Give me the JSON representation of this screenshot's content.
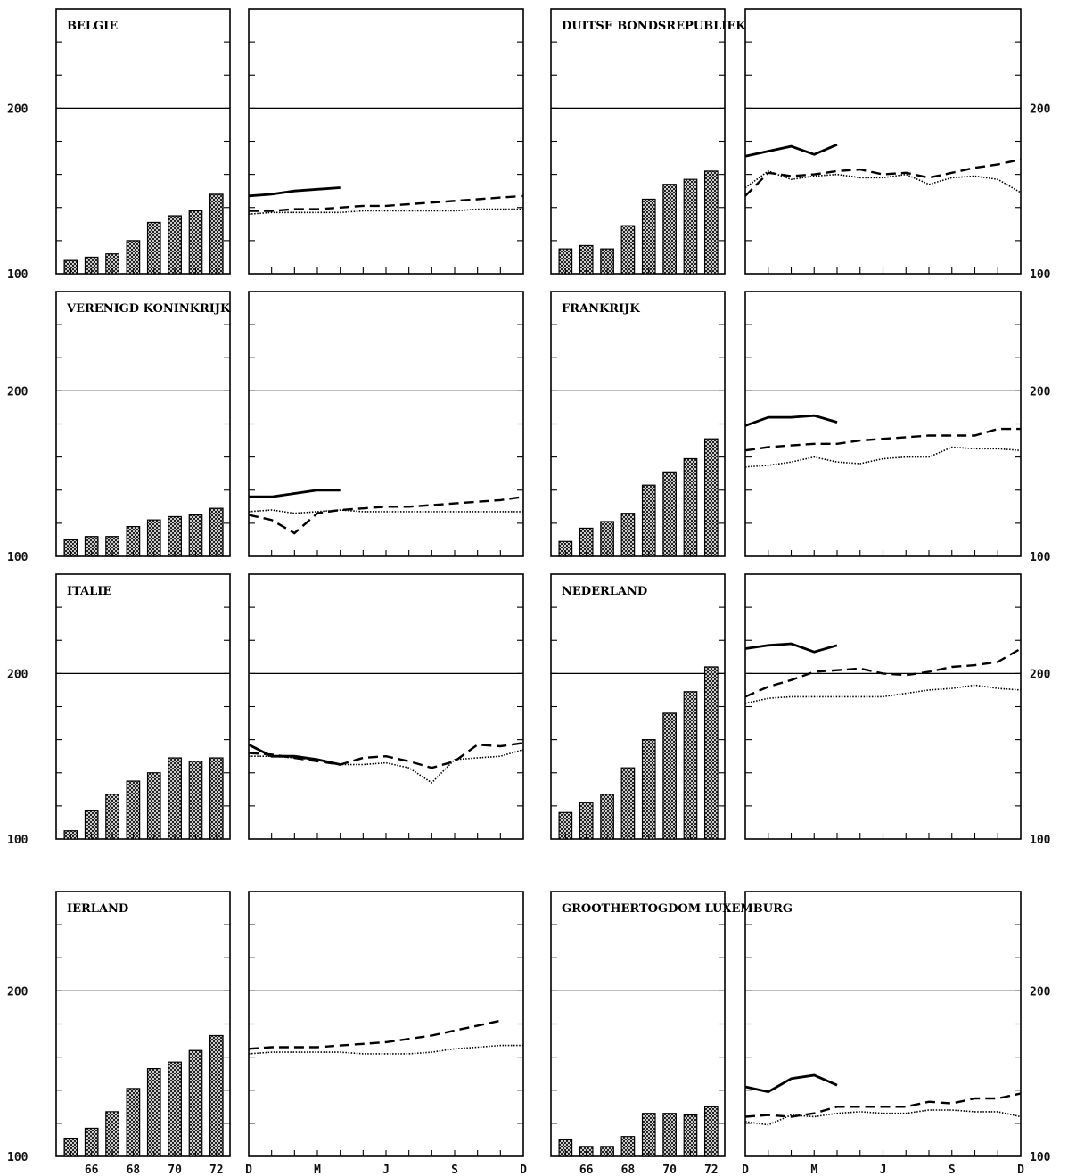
{
  "y_tick_labels": [
    "200",
    "100"
  ],
  "x_tick_labels_annual": [
    "66",
    "68",
    "70",
    "72"
  ],
  "x_tick_labels_monthly": [
    "D",
    "M",
    "J",
    "S",
    "D"
  ],
  "colors": {
    "ink": "#000000",
    "bar_fill_pattern": "crosshatch"
  },
  "chart_data": [
    {
      "country": "BELGIE",
      "annual": {
        "type": "bar",
        "years": [
          65,
          66,
          67,
          68,
          69,
          70,
          71,
          72
        ],
        "values": [
          108,
          110,
          112,
          120,
          131,
          135,
          138,
          148
        ],
        "ylim": [
          100,
          260
        ]
      },
      "monthly": {
        "type": "line",
        "x": [
          0,
          1,
          2,
          3,
          4,
          5,
          6,
          7,
          8,
          9,
          10,
          11,
          12
        ],
        "series": [
          {
            "style": "solid",
            "values": [
              147,
              148,
              150,
              151,
              152
            ]
          },
          {
            "style": "dashed",
            "values": [
              138,
              138,
              139,
              139,
              140,
              141,
              141,
              142,
              143,
              144,
              145,
              146,
              147
            ]
          },
          {
            "style": "dotted",
            "values": [
              136,
              137,
              137,
              137,
              137,
              138,
              138,
              138,
              138,
              138,
              139,
              139,
              139
            ]
          }
        ],
        "ylim": [
          100,
          260
        ]
      }
    },
    {
      "country": "DUITSE BONDSREPUBLIEK",
      "annual": {
        "type": "bar",
        "years": [
          65,
          66,
          67,
          68,
          69,
          70,
          71,
          72
        ],
        "values": [
          115,
          117,
          115,
          129,
          145,
          154,
          157,
          162
        ],
        "ylim": [
          100,
          260
        ]
      },
      "monthly": {
        "type": "line",
        "x": [
          0,
          1,
          2,
          3,
          4,
          5,
          6,
          7,
          8,
          9,
          10,
          11,
          12
        ],
        "series": [
          {
            "style": "solid",
            "values": [
              171,
              174,
              177,
              172,
              178
            ]
          },
          {
            "style": "dashed",
            "values": [
              147,
              161,
              159,
              160,
              162,
              163,
              160,
              161,
              158,
              161,
              164,
              166,
              169
            ]
          },
          {
            "style": "dotted",
            "values": [
              152,
              162,
              157,
              159,
              160,
              158,
              158,
              160,
              154,
              158,
              159,
              157,
              149
            ]
          }
        ],
        "ylim": [
          100,
          260
        ]
      }
    },
    {
      "country": "VERENIGD KONINKRIJK",
      "annual": {
        "type": "bar",
        "years": [
          65,
          66,
          67,
          68,
          69,
          70,
          71,
          72
        ],
        "values": [
          110,
          112,
          112,
          118,
          122,
          124,
          125,
          129
        ],
        "ylim": [
          100,
          260
        ]
      },
      "monthly": {
        "type": "line",
        "x": [
          0,
          1,
          2,
          3,
          4,
          5,
          6,
          7,
          8,
          9,
          10,
          11,
          12
        ],
        "series": [
          {
            "style": "solid",
            "values": [
              136,
              136,
              138,
              140,
              140
            ]
          },
          {
            "style": "dashed",
            "values": [
              125,
              122,
              114,
              126,
              128,
              129,
              130,
              130,
              131,
              132,
              133,
              134,
              136
            ]
          },
          {
            "style": "dotted",
            "values": [
              127,
              128,
              126,
              127,
              128,
              127,
              127,
              127,
              127,
              127,
              127,
              127,
              127
            ]
          }
        ],
        "ylim": [
          100,
          260
        ]
      }
    },
    {
      "country": "FRANKRIJK",
      "annual": {
        "type": "bar",
        "years": [
          65,
          66,
          67,
          68,
          69,
          70,
          71,
          72
        ],
        "values": [
          109,
          117,
          121,
          126,
          143,
          151,
          159,
          171
        ],
        "ylim": [
          100,
          260
        ]
      },
      "monthly": {
        "type": "line",
        "x": [
          0,
          1,
          2,
          3,
          4,
          5,
          6,
          7,
          8,
          9,
          10,
          11,
          12
        ],
        "series": [
          {
            "style": "solid",
            "values": [
              179,
              184,
              184,
              185,
              181
            ]
          },
          {
            "style": "dashed",
            "values": [
              164,
              166,
              167,
              168,
              168,
              170,
              171,
              172,
              173,
              173,
              173,
              177,
              177
            ]
          },
          {
            "style": "dotted",
            "values": [
              154,
              155,
              157,
              160,
              157,
              156,
              159,
              160,
              160,
              166,
              165,
              165,
              164
            ]
          }
        ],
        "ylim": [
          100,
          260
        ]
      }
    },
    {
      "country": "ITALIE",
      "annual": {
        "type": "bar",
        "years": [
          65,
          66,
          67,
          68,
          69,
          70,
          71,
          72
        ],
        "values": [
          105,
          117,
          127,
          135,
          140,
          149,
          147,
          149
        ],
        "ylim": [
          100,
          260
        ]
      },
      "monthly": {
        "type": "line",
        "x": [
          0,
          1,
          2,
          3,
          4,
          5,
          6,
          7,
          8,
          9,
          10,
          11,
          12
        ],
        "series": [
          {
            "style": "solid",
            "values": [
              157,
              150,
              150,
              148,
              145
            ]
          },
          {
            "style": "dashed",
            "values": [
              152,
              151,
              149,
              147,
              145,
              149,
              150,
              147,
              143,
              147,
              157,
              156,
              158
            ]
          },
          {
            "style": "dotted",
            "values": [
              150,
              150,
              149,
              148,
              145,
              145,
              146,
              143,
              134,
              148,
              149,
              150,
              154
            ]
          }
        ],
        "ylim": [
          100,
          260
        ]
      }
    },
    {
      "country": "NEDERLAND",
      "annual": {
        "type": "bar",
        "years": [
          65,
          66,
          67,
          68,
          69,
          70,
          71,
          72
        ],
        "values": [
          116,
          122,
          127,
          143,
          160,
          176,
          189,
          204
        ],
        "ylim": [
          100,
          260
        ]
      },
      "monthly": {
        "type": "line",
        "x": [
          0,
          1,
          2,
          3,
          4,
          5,
          6,
          7,
          8,
          9,
          10,
          11,
          12
        ],
        "series": [
          {
            "style": "solid",
            "values": [
              215,
              217,
              218,
              213,
              217
            ]
          },
          {
            "style": "dashed",
            "values": [
              186,
              192,
              196,
              201,
              202,
              203,
              200,
              199,
              201,
              204,
              205,
              207,
              215
            ]
          },
          {
            "style": "dotted",
            "values": [
              182,
              185,
              186,
              186,
              186,
              186,
              186,
              188,
              190,
              191,
              193,
              191,
              190
            ]
          }
        ],
        "ylim": [
          100,
          260
        ]
      }
    },
    {
      "country": "IERLAND",
      "annual": {
        "type": "bar",
        "years": [
          65,
          66,
          67,
          68,
          69,
          70,
          71,
          72
        ],
        "values": [
          111,
          117,
          127,
          141,
          153,
          157,
          164,
          173
        ],
        "ylim": [
          100,
          260
        ]
      },
      "monthly": {
        "type": "line",
        "x": [
          0,
          1,
          2,
          3,
          4,
          5,
          6,
          7,
          8,
          9,
          10,
          11,
          12
        ],
        "series": [
          {
            "style": "solid",
            "values": []
          },
          {
            "style": "dashed",
            "values": [
              165,
              166,
              166,
              166,
              167,
              168,
              169,
              171,
              173,
              176,
              179,
              182
            ]
          },
          {
            "style": "dotted",
            "values": [
              162,
              163,
              163,
              163,
              163,
              162,
              162,
              162,
              163,
              165,
              166,
              167,
              167
            ]
          }
        ],
        "ylim": [
          100,
          260
        ]
      }
    },
    {
      "country": "GROOTHERTOGDOM LUXEMBURG",
      "annual": {
        "type": "bar",
        "years": [
          65,
          66,
          67,
          68,
          69,
          70,
          71,
          72
        ],
        "values": [
          110,
          106,
          106,
          112,
          126,
          126,
          125,
          130
        ],
        "ylim": [
          100,
          260
        ]
      },
      "monthly": {
        "type": "line",
        "x": [
          0,
          1,
          2,
          3,
          4,
          5,
          6,
          7,
          8,
          9,
          10,
          11,
          12
        ],
        "series": [
          {
            "style": "solid",
            "values": [
              142,
              139,
              147,
              149,
              143
            ]
          },
          {
            "style": "dashed",
            "values": [
              124,
              125,
              124,
              126,
              130,
              130,
              130,
              130,
              133,
              132,
              135,
              135,
              138
            ]
          },
          {
            "style": "dotted",
            "values": [
              121,
              119,
              125,
              124,
              126,
              127,
              126,
              126,
              128,
              128,
              127,
              127,
              124
            ]
          }
        ],
        "ylim": [
          100,
          260
        ]
      }
    }
  ]
}
